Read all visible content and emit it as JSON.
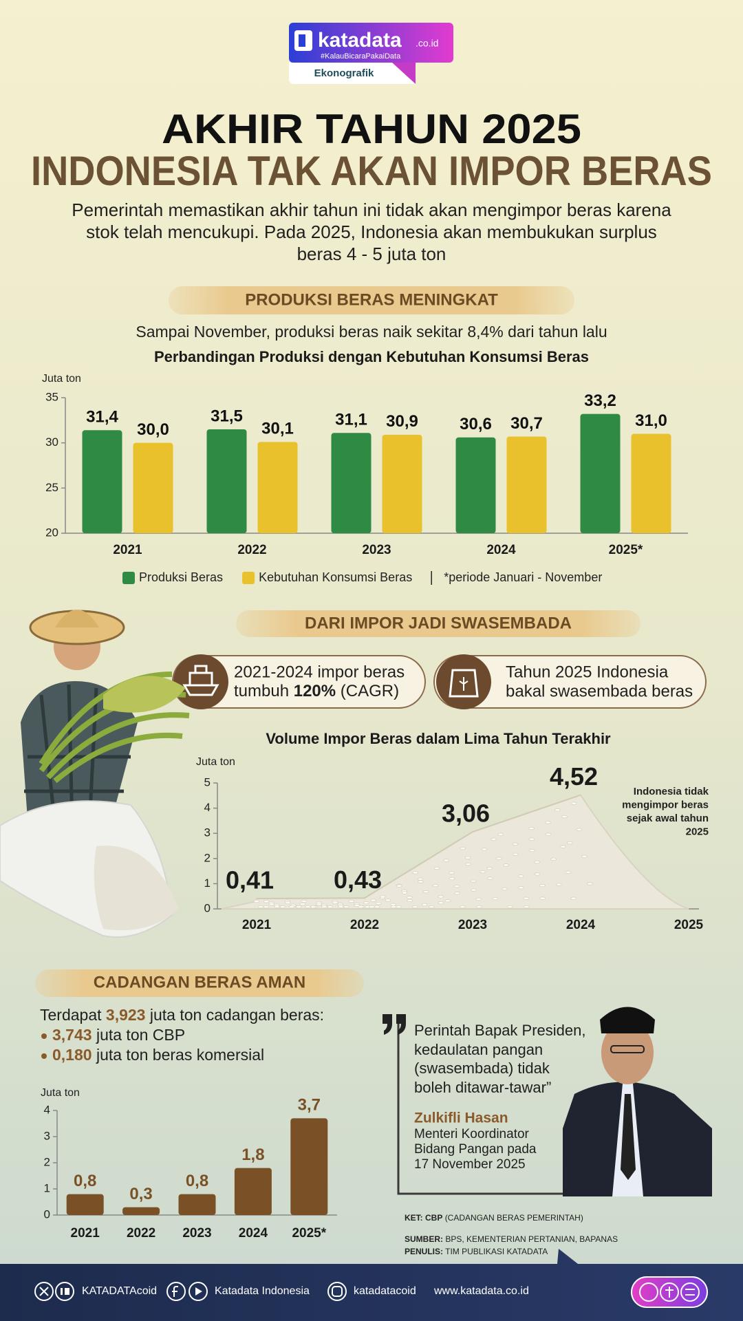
{
  "brand": {
    "name": "katadata",
    "domain": ".co.id",
    "tagline": "#KalauBicaraPakaiData",
    "label": "Ekonografik"
  },
  "title": [
    "AKHIR TAHUN 2025",
    "INDONESIA TAK AKAN IMPOR BERAS"
  ],
  "intro": [
    "Pemerintah memastikan akhir tahun ini tidak akan mengimpor beras karena",
    "stok  telah mencukupi. Pada 2025, Indonesia  akan membukukan surplus",
    "beras 4 - 5 juta ton"
  ],
  "production": {
    "heading": "PRODUKSI BERAS MENINGKAT",
    "text": "Sampai November, produksi beras naik sekitar 8,4% dari tahun lalu"
  },
  "imports": {
    "heading": "DARI IMPOR JADI SWASEMBADA",
    "badge1": {
      "line1": "2021-2024 impor beras",
      "before": "tumbuh",
      "bold": "120%",
      "after": "(CAGR)"
    },
    "badge2": {
      "line1": "Tahun 2025 Indonesia",
      "line2": "bakal swasembada beras"
    }
  },
  "reserves": {
    "heading": "CADANGAN BERAS AMAN",
    "lead": {
      "before": "Terdapat",
      "amount": "3,923",
      "after": "juta ton cadangan beras:"
    },
    "items": [
      {
        "amount": "3,743",
        "text": "juta ton CBP"
      },
      {
        "amount": "0,180",
        "text": "juta ton beras komersial"
      }
    ]
  },
  "quote": {
    "lines": [
      "Perintah Bapak Presiden,",
      "kedaulatan pangan",
      "(swasembada) tidak",
      "boleh ditawar-tawar”"
    ],
    "name": "Zulkifli Hasan",
    "role": [
      "Menteri Koordinator",
      "Bidang Pangan pada",
      "17 November 2025"
    ]
  },
  "notes": [
    {
      "label": "KET: CBP",
      "text": "(CADANGAN BERAS PEMERINTAH)"
    },
    {
      "label": "SUMBER:",
      "text": "BPS, KEMENTERIAN PERTANIAN, BAPANAS"
    },
    {
      "label": "PENULIS:",
      "text": "TIM PUBLIKASI KATADATA"
    }
  ],
  "footer": [
    "KATADATAcoid",
    "Katadata Indonesia",
    "katadatacoid",
    "www.katadata.co.id"
  ],
  "chart_data": [
    {
      "type": "bar",
      "title": "Perbandingan Produksi dengan Kebutuhan Konsumsi Beras",
      "y_label": "Juta ton",
      "categories": [
        "2021",
        "2022",
        "2023",
        "2024",
        "2025*"
      ],
      "series": [
        {
          "name": "Produksi Beras",
          "color": "#2f8a43",
          "values": [
            31.4,
            31.5,
            31.1,
            30.6,
            33.2
          ],
          "value_labels": [
            "31,4",
            "31,5",
            "31,1",
            "30,6",
            "33,2"
          ]
        },
        {
          "name": "Kebutuhan Konsumsi Beras",
          "color": "#e8c12c",
          "values": [
            30.0,
            30.1,
            30.9,
            30.7,
            31.0
          ],
          "value_labels": [
            "30,0",
            "30,1",
            "30,9",
            "30,7",
            "31,0"
          ]
        }
      ],
      "ylim": [
        20,
        35
      ],
      "yticks": [
        20,
        25,
        30,
        35
      ],
      "note": "*periode Januari - November"
    },
    {
      "type": "area",
      "title": "Volume Impor Beras dalam Lima Tahun Terakhir",
      "y_label": "Juta ton",
      "categories": [
        "2021",
        "2022",
        "2023",
        "2024",
        "2025"
      ],
      "values": [
        0.41,
        0.43,
        3.06,
        4.52,
        null
      ],
      "value_labels": [
        "0,41",
        "0,43",
        "3,06",
        "4,52",
        null
      ],
      "color": "#ebe7da",
      "ylim": [
        0,
        5
      ],
      "yticks": [
        0,
        1,
        2,
        3,
        4,
        5
      ],
      "annotation": [
        "Indonesia tidak",
        "mengimpor beras",
        "sejak awal tahun",
        "2025"
      ]
    },
    {
      "type": "bar",
      "y_label": "Juta ton",
      "categories": [
        "2021",
        "2022",
        "2023",
        "2024",
        "2025*"
      ],
      "values": [
        0.8,
        0.3,
        0.8,
        1.8,
        3.7
      ],
      "value_labels": [
        "0,8",
        "0,3",
        "0,8",
        "1,8",
        "3,7"
      ],
      "color": "#7a5126",
      "ylim": [
        0,
        4
      ],
      "yticks": [
        0,
        1,
        2,
        3,
        4
      ]
    }
  ]
}
